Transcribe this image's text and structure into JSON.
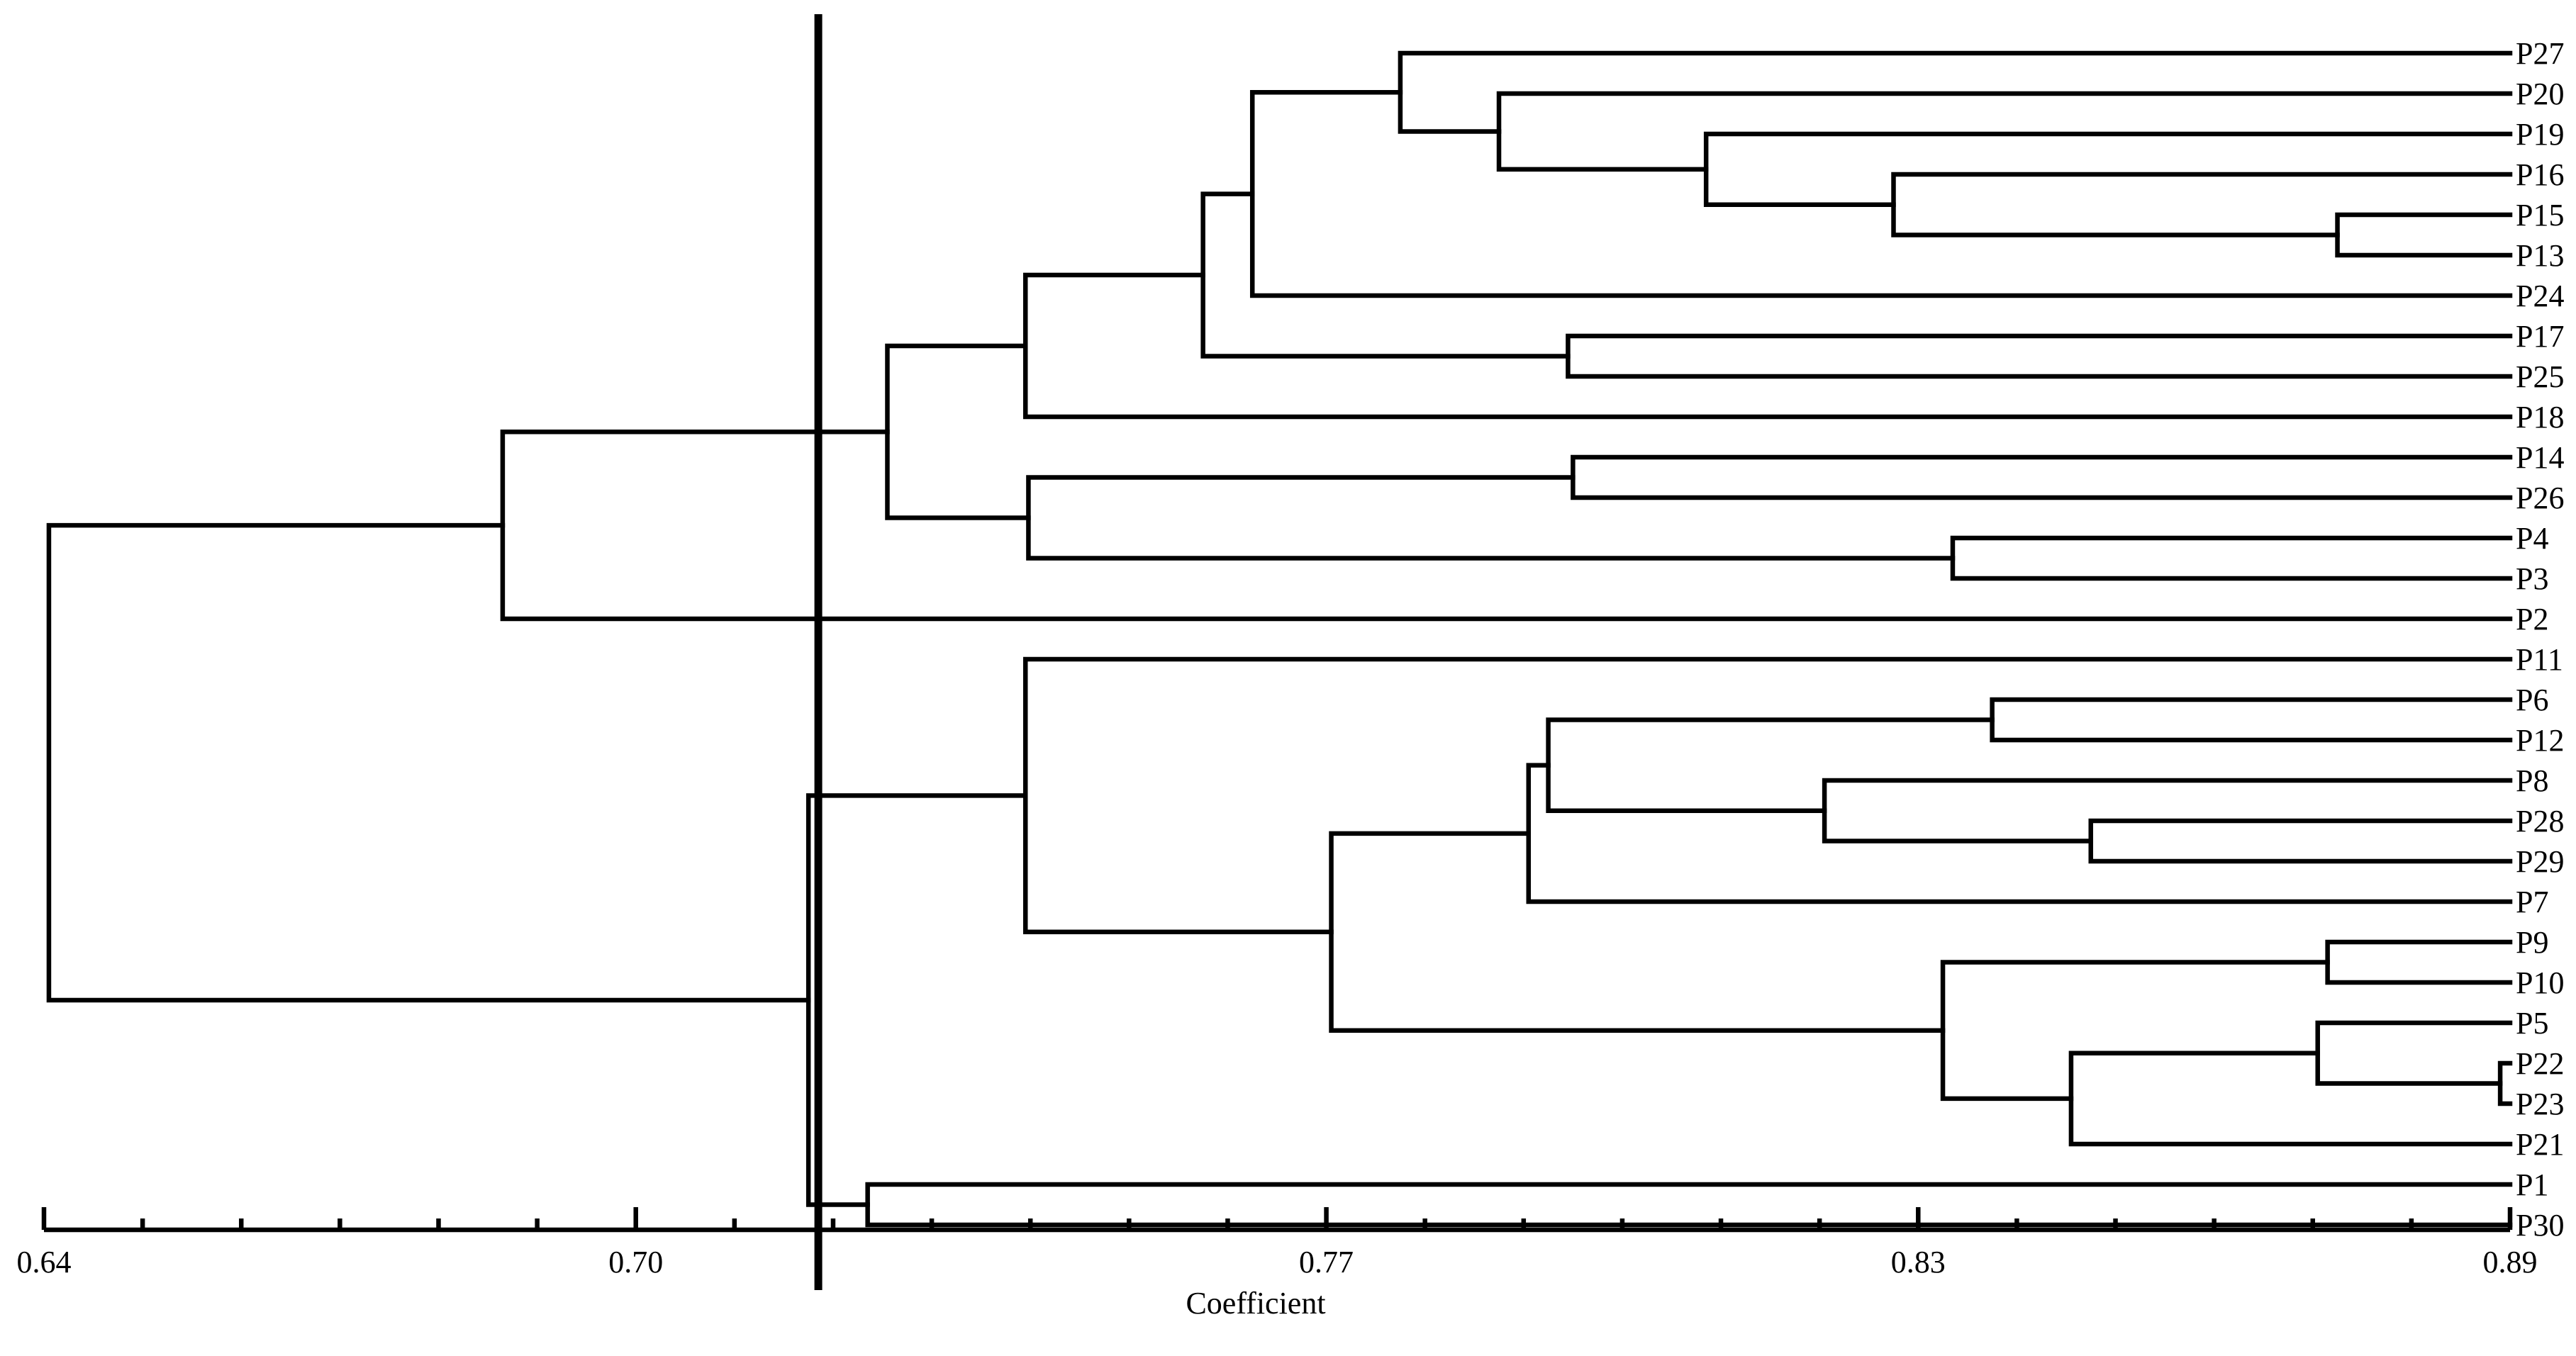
{
  "chart_data": {
    "type": "dendrogram",
    "xlabel": "Coefficient",
    "xlim": [
      0.64,
      0.89
    ],
    "ticks": [
      {
        "value": 0.64,
        "label": "0.64"
      },
      {
        "value": 0.7,
        "label": "0.70"
      },
      {
        "value": 0.77,
        "label": "0.77"
      },
      {
        "value": 0.83,
        "label": "0.83"
      },
      {
        "value": 0.89,
        "label": "0.89"
      }
    ],
    "cutoff": 0.7185,
    "leaves": [
      "P27",
      "P20",
      "P19",
      "P16",
      "P15",
      "P13",
      "P24",
      "P17",
      "P25",
      "P18",
      "P14",
      "P26",
      "P4",
      "P3",
      "P2",
      "P11",
      "P6",
      "P12",
      "P8",
      "P28",
      "P29",
      "P7",
      "P9",
      "P10",
      "P5",
      "P22",
      "P23",
      "P21",
      "P1",
      "P30"
    ],
    "merges": [
      {
        "a": "P22",
        "b": "P23",
        "sim": 0.889
      },
      {
        "a": "P15",
        "b": "P13",
        "sim": 0.8725
      },
      {
        "a": "P9",
        "b": "P10",
        "sim": 0.8715
      },
      {
        "a": "c1",
        "b": "P5",
        "sim": 0.8705
      },
      {
        "a": "P28",
        "b": "P29",
        "sim": 0.8475
      },
      {
        "a": "c4",
        "b": "P21",
        "sim": 0.8455
      },
      {
        "a": "P6",
        "b": "P12",
        "sim": 0.8375
      },
      {
        "a": "P4",
        "b": "P3",
        "sim": 0.8335
      },
      {
        "a": "c3",
        "b": "c6",
        "sim": 0.8325
      },
      {
        "a": "P16",
        "b": "c2",
        "sim": 0.8275
      },
      {
        "a": "P8",
        "b": "c5",
        "sim": 0.8205
      },
      {
        "a": "P19",
        "b": "c10",
        "sim": 0.8085
      },
      {
        "a": "P14",
        "b": "P26",
        "sim": 0.795
      },
      {
        "a": "P17",
        "b": "P25",
        "sim": 0.7945
      },
      {
        "a": "c7",
        "b": "c11",
        "sim": 0.7925
      },
      {
        "a": "c15",
        "b": "P7",
        "sim": 0.7905
      },
      {
        "a": "P20",
        "b": "c12",
        "sim": 0.7875
      },
      {
        "a": "P27",
        "b": "c17",
        "sim": 0.7775
      },
      {
        "a": "c16",
        "b": "c9",
        "sim": 0.7705
      },
      {
        "a": "c18",
        "b": "P24",
        "sim": 0.7625
      },
      {
        "a": "c20",
        "b": "c14",
        "sim": 0.7575
      },
      {
        "a": "c13",
        "b": "c8",
        "sim": 0.7398
      },
      {
        "a": "P11",
        "b": "c19",
        "sim": 0.7395
      },
      {
        "a": "c21",
        "b": "P18",
        "sim": 0.7395
      },
      {
        "a": "c24",
        "b": "c22",
        "sim": 0.7255
      },
      {
        "a": "P1",
        "b": "P30",
        "sim": 0.7235
      },
      {
        "a": "c23",
        "b": "c26",
        "sim": 0.7175
      },
      {
        "a": "c25",
        "b": "P2",
        "sim": 0.6865
      },
      {
        "a": "c28",
        "b": "c27",
        "sim": 0.6405
      }
    ]
  }
}
